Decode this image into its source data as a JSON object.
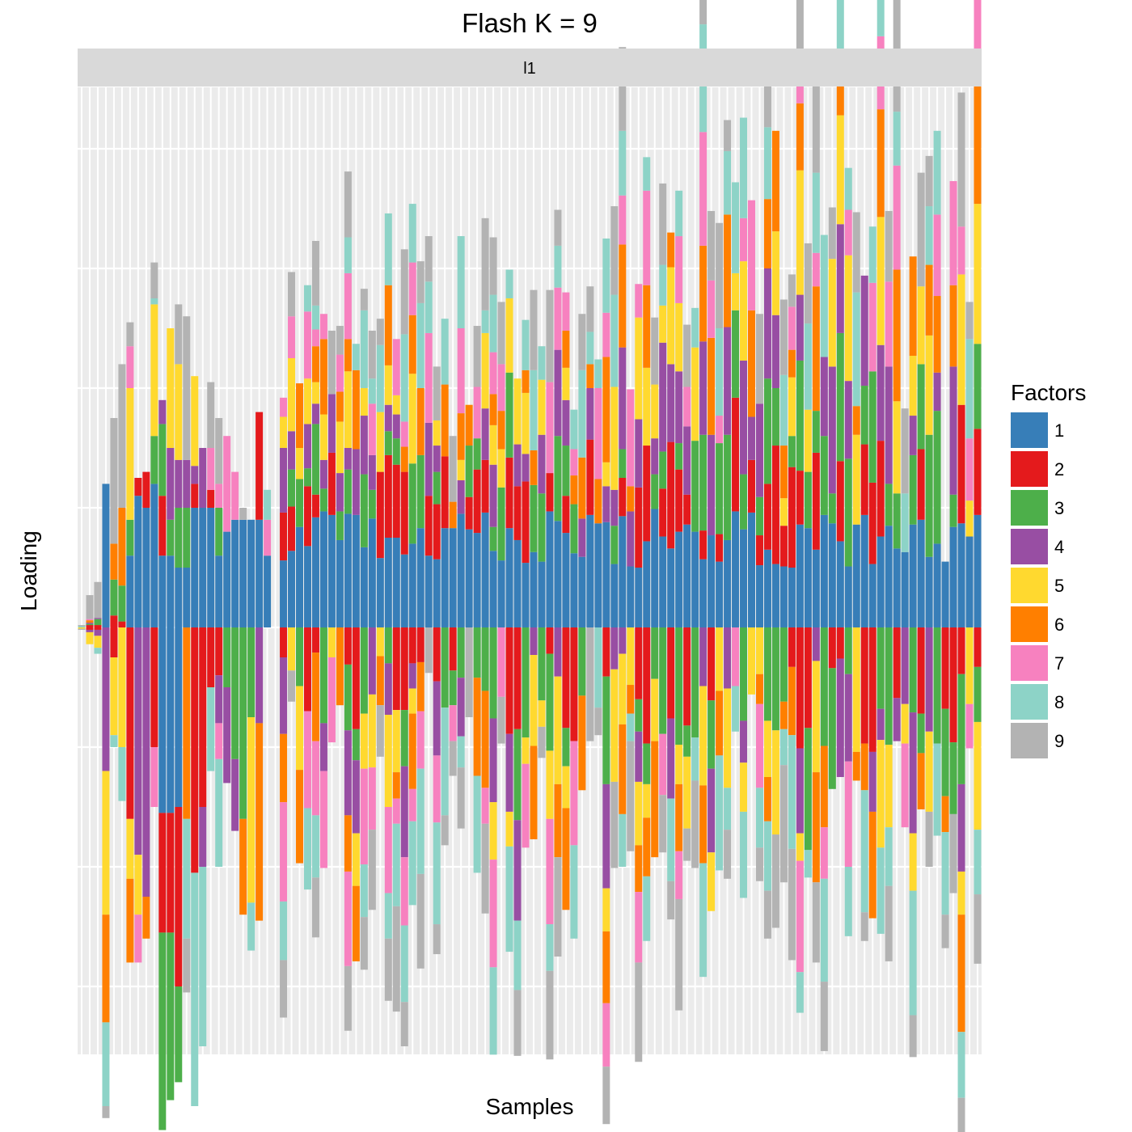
{
  "chart_data": {
    "type": "bar",
    "stacked": true,
    "diverging": true,
    "title": "Flash K = 9",
    "facet_label": "l1",
    "xlabel": "Samples",
    "ylabel": "Loading",
    "y_tick_labels_shown": false,
    "x_tick_labels_shown": false,
    "grid": true,
    "legend": {
      "title": "Factors",
      "placement": "right"
    },
    "series": [
      {
        "name": "1",
        "color": "#377EB8"
      },
      {
        "name": "2",
        "color": "#E41A1C"
      },
      {
        "name": "3",
        "color": "#4DAF4A"
      },
      {
        "name": "4",
        "color": "#984EA3"
      },
      {
        "name": "5",
        "color": "#FFD92F"
      },
      {
        "name": "6",
        "color": "#FF7F00"
      },
      {
        "name": "7",
        "color": "#F781BF"
      },
      {
        "name": "8",
        "color": "#8DD3C7"
      },
      {
        "name": "9",
        "color": "#B3B3B3"
      }
    ],
    "units": "relative (no tick labels; 1 unit = one major gridline interval)",
    "samples": [
      {
        "pos": [
          0.0,
          0.0,
          0.0,
          0.0,
          0.0,
          0.0,
          0.0,
          0.01,
          0.01
        ],
        "neg": [
          0.0,
          0.0,
          0.0,
          0.0,
          0.01,
          0.0,
          0.0,
          0.0,
          0.01
        ]
      },
      {
        "pos": [
          0.0,
          0.02,
          0.01,
          0.01,
          0.0,
          0.02,
          0.01,
          0.0,
          0.2
        ],
        "neg": [
          0.0,
          0.02,
          0.0,
          0.02,
          0.1,
          0.0,
          0.0,
          0.0,
          0.0
        ]
      },
      {
        "pos": [
          0.0,
          0.02,
          0.05,
          0.01,
          0.0,
          0.0,
          0.0,
          0.0,
          0.3
        ],
        "neg": [
          0.0,
          0.02,
          0.0,
          0.05,
          0.1,
          0.0,
          0.0,
          0.05,
          0.0
        ]
      },
      {
        "pos": [
          1.2,
          0.0,
          0.0,
          0.0,
          0.0,
          0.0,
          0.0,
          0.0,
          0.0
        ],
        "neg": [
          0.0,
          0.0,
          0.0,
          1.2,
          1.2,
          0.9,
          0.0,
          0.7,
          0.1
        ]
      },
      {
        "pos": [
          0.0,
          0.1,
          0.3,
          0.0,
          0.0,
          0.3,
          0.0,
          0.0,
          1.05
        ],
        "neg": [
          0.0,
          0.25,
          0.0,
          0.0,
          0.65,
          0.0,
          0.0,
          0.1,
          0.0
        ]
      },
      {
        "pos": [
          0.0,
          0.05,
          0.3,
          0.0,
          0.0,
          0.65,
          0.0,
          0.0,
          1.2
        ],
        "neg": [
          0.0,
          0.0,
          0.0,
          0.0,
          1.0,
          0.0,
          0.0,
          0.45,
          0.0
        ]
      },
      {
        "pos": [
          0.6,
          0.0,
          0.3,
          0.0,
          1.1,
          0.0,
          0.35,
          0.0,
          0.2
        ],
        "neg": [
          0.0,
          1.6,
          0.0,
          0.0,
          0.5,
          0.7,
          0.0,
          0.0,
          0.0
        ]
      },
      {
        "pos": [
          1.1,
          0.15,
          0.0,
          0.0,
          0.0,
          0.0,
          0.0,
          0.0,
          0.0
        ],
        "neg": [
          0.0,
          0.0,
          0.0,
          1.9,
          0.5,
          0.0,
          0.4,
          0.0,
          0.0
        ]
      },
      {
        "pos": [
          1.0,
          0.3,
          0.0,
          0.0,
          0.0,
          0.0,
          0.0,
          0.0,
          0.0
        ],
        "neg": [
          0.0,
          0.0,
          0.0,
          2.25,
          0.0,
          0.35,
          0.0,
          0.0,
          0.0
        ]
      },
      {
        "pos": [
          1.2,
          0.0,
          0.4,
          0.0,
          1.1,
          0.0,
          0.0,
          0.05,
          0.3
        ],
        "neg": [
          0.0,
          1.0,
          0.0,
          0.0,
          0.0,
          0.0,
          0.5,
          0.0,
          0.0
        ]
      },
      {
        "pos": [
          0.6,
          0.5,
          0.6,
          0.2,
          0.0,
          0.0,
          0.0,
          0.0,
          0.0
        ],
        "neg": [
          1.55,
          1.0,
          1.65,
          0.0,
          0.0,
          0.0,
          0.0,
          0.0,
          0.0
        ]
      },
      {
        "pos": [
          0.6,
          0.0,
          0.3,
          0.6,
          1.0,
          0.0,
          0.0,
          0.0,
          0.0
        ],
        "neg": [
          1.55,
          1.0,
          1.4,
          0.0,
          0.0,
          0.0,
          0.0,
          0.0,
          0.0
        ]
      },
      {
        "pos": [
          0.5,
          0.0,
          0.5,
          0.4,
          0.8,
          0.0,
          0.0,
          0.0,
          0.5
        ],
        "neg": [
          1.5,
          1.5,
          0.8,
          0.0,
          0.0,
          0.0,
          0.0,
          0.0,
          0.0
        ]
      },
      {
        "pos": [
          0.5,
          0.0,
          0.5,
          0.4,
          0.0,
          0.0,
          0.0,
          0.0,
          1.2
        ],
        "neg": [
          0.0,
          0.0,
          0.0,
          0.0,
          0.0,
          1.6,
          0.0,
          1.0,
          0.45
        ]
      },
      {
        "pos": [
          1.0,
          0.2,
          0.0,
          0.15,
          0.75,
          0.0,
          0.0,
          0.0,
          0.0
        ],
        "neg": [
          0.0,
          2.05,
          0.0,
          0.0,
          0.0,
          0.0,
          0.0,
          1.95,
          0.0
        ]
      },
      {
        "pos": [
          1.0,
          0.0,
          0.0,
          0.5,
          0.0,
          0.0,
          0.0,
          0.0,
          0.0
        ],
        "neg": [
          0.0,
          1.5,
          0.0,
          0.5,
          0.0,
          0.0,
          0.0,
          1.5,
          0.0
        ]
      },
      {
        "pos": [
          1.0,
          0.15,
          0.0,
          0.0,
          0.0,
          0.0,
          0.35,
          0.0,
          0.55
        ],
        "neg": [
          0.0,
          0.5,
          0.0,
          0.0,
          0.0,
          0.0,
          0.0,
          0.7,
          0.0
        ]
      },
      {
        "pos": [
          0.6,
          0.0,
          0.4,
          0.0,
          0.0,
          0.0,
          0.2,
          0.0,
          0.55
        ],
        "neg": [
          0.0,
          0.4,
          0.0,
          0.4,
          0.0,
          0.0,
          0.3,
          0.9,
          0.0
        ]
      },
      {
        "pos": [
          0.8,
          0.0,
          0.0,
          0.0,
          0.0,
          0.0,
          0.8,
          0.0,
          0.0
        ],
        "neg": [
          0.0,
          0.0,
          0.5,
          0.8,
          0.0,
          0.0,
          0.0,
          0.0,
          0.0
        ]
      },
      {
        "pos": [
          0.9,
          0.0,
          0.0,
          0.0,
          0.0,
          0.0,
          0.4,
          0.0,
          0.0
        ],
        "neg": [
          0.0,
          0.0,
          1.1,
          0.6,
          0.0,
          0.0,
          0.0,
          0.0,
          0.0
        ]
      },
      {
        "pos": [
          0.9,
          0.0,
          0.0,
          0.0,
          0.0,
          0.0,
          0.0,
          0.0,
          0.1
        ],
        "neg": [
          0.0,
          0.0,
          1.6,
          0.0,
          0.0,
          0.8,
          0.0,
          0.0,
          0.0
        ]
      },
      {
        "pos": [
          0.9,
          0.0,
          0.0,
          0.0,
          0.0,
          0.0,
          0.0,
          0.0,
          0.0
        ],
        "neg": [
          0.0,
          0.0,
          0.75,
          0.0,
          1.55,
          0.0,
          0.0,
          0.4,
          0.0
        ]
      },
      {
        "pos": [
          0.9,
          0.9,
          0.0,
          0.0,
          0.0,
          0.0,
          0.0,
          0.0,
          0.0
        ],
        "neg": [
          0.0,
          0.0,
          0.0,
          0.8,
          0.0,
          1.65,
          0.0,
          0.0,
          0.0
        ]
      },
      {
        "pos": [
          0.6,
          0.0,
          0.0,
          0.0,
          0.0,
          0.0,
          0.3,
          0.25,
          0.0
        ],
        "neg": [
          0.0,
          0.0,
          0.0,
          0.0,
          0.0,
          0.0,
          0.0,
          0.0,
          0.0
        ]
      },
      {
        "pos": [
          0.0,
          0.0,
          0.0,
          0.0,
          0.0,
          0.0,
          0.0,
          0.0,
          0.0
        ],
        "neg": [
          0.0,
          0.0,
          0.0,
          0.0,
          0.0,
          0.0,
          0.0,
          0.0,
          0.0
        ]
      }
    ]
  }
}
